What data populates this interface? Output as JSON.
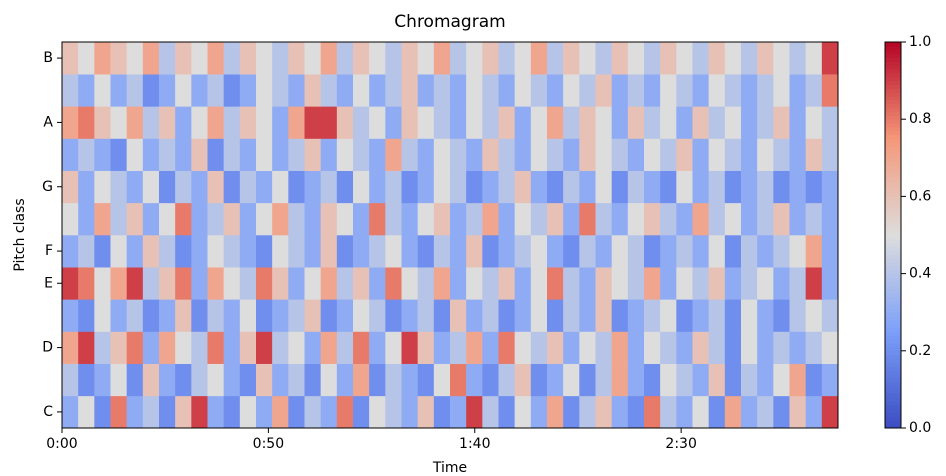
{
  "chart_data": {
    "type": "heatmap",
    "title": "Chromagram",
    "x_label": "Time",
    "y_label": "Pitch class",
    "cmap": "coolwarm",
    "xlim": [
      0,
      188
    ],
    "xticks": [
      {
        "value": 0,
        "label": "0:00"
      },
      {
        "value": 50,
        "label": "0:50"
      },
      {
        "value": 100,
        "label": "1:40"
      },
      {
        "value": 150,
        "label": "2:30"
      }
    ],
    "categories": [
      "C",
      null,
      "D",
      null,
      "E",
      "F",
      null,
      "G",
      null,
      "A",
      null,
      "B"
    ],
    "values": [
      [
        0.3,
        0.5,
        0.2,
        0.8,
        0.3,
        0.4,
        0.2,
        0.6,
        0.9,
        0.3,
        0.2,
        0.5,
        0.3,
        0.7,
        0.2,
        0.4,
        0.3,
        0.8,
        0.2,
        0.5,
        0.4,
        0.3,
        0.6,
        0.2,
        0.3,
        0.9,
        0.4,
        0.2,
        0.5,
        0.3,
        0.7,
        0.2,
        0.4,
        0.6,
        0.3,
        0.2,
        0.8,
        0.4,
        0.3,
        0.5,
        0.2,
        0.7,
        0.3,
        0.4,
        0.2,
        0.6,
        0.3,
        0.9
      ],
      [
        0.4,
        0.2,
        0.3,
        0.5,
        0.2,
        0.6,
        0.3,
        0.2,
        0.4,
        0.5,
        0.3,
        0.2,
        0.6,
        0.3,
        0.4,
        0.2,
        0.5,
        0.3,
        0.7,
        0.2,
        0.4,
        0.3,
        0.2,
        0.5,
        0.8,
        0.3,
        0.2,
        0.4,
        0.6,
        0.2,
        0.3,
        0.5,
        0.2,
        0.4,
        0.7,
        0.3,
        0.2,
        0.5,
        0.4,
        0.3,
        0.6,
        0.2,
        0.4,
        0.3,
        0.5,
        0.7,
        0.2,
        0.3
      ],
      [
        0.7,
        0.9,
        0.4,
        0.6,
        0.8,
        0.3,
        0.7,
        0.5,
        0.4,
        0.8,
        0.3,
        0.6,
        0.9,
        0.4,
        0.5,
        0.3,
        0.7,
        0.4,
        0.8,
        0.3,
        0.5,
        0.9,
        0.6,
        0.3,
        0.4,
        0.7,
        0.3,
        0.8,
        0.5,
        0.4,
        0.6,
        0.3,
        0.5,
        0.4,
        0.7,
        0.3,
        0.5,
        0.4,
        0.3,
        0.6,
        0.4,
        0.2,
        0.5,
        0.3,
        0.4,
        0.3,
        0.4,
        0.5
      ],
      [
        0.3,
        0.2,
        0.5,
        0.3,
        0.4,
        0.2,
        0.3,
        0.6,
        0.2,
        0.4,
        0.3,
        0.5,
        0.2,
        0.3,
        0.4,
        0.6,
        0.2,
        0.3,
        0.5,
        0.4,
        0.2,
        0.3,
        0.4,
        0.2,
        0.6,
        0.3,
        0.4,
        0.2,
        0.3,
        0.5,
        0.2,
        0.4,
        0.3,
        0.6,
        0.2,
        0.3,
        0.4,
        0.5,
        0.2,
        0.3,
        0.4,
        0.2,
        0.5,
        0.3,
        0.2,
        0.4,
        0.5,
        0.4
      ],
      [
        0.9,
        0.8,
        0.5,
        0.7,
        0.9,
        0.4,
        0.6,
        0.8,
        0.3,
        0.7,
        0.5,
        0.4,
        0.8,
        0.6,
        0.3,
        0.5,
        0.7,
        0.4,
        0.6,
        0.3,
        0.8,
        0.5,
        0.4,
        0.7,
        0.3,
        0.5,
        0.4,
        0.6,
        0.3,
        0.5,
        0.8,
        0.4,
        0.3,
        0.6,
        0.5,
        0.4,
        0.7,
        0.3,
        0.5,
        0.4,
        0.6,
        0.3,
        0.4,
        0.5,
        0.3,
        0.4,
        0.9,
        0.3
      ],
      [
        0.3,
        0.4,
        0.2,
        0.5,
        0.3,
        0.6,
        0.4,
        0.2,
        0.3,
        0.5,
        0.4,
        0.3,
        0.2,
        0.5,
        0.4,
        0.3,
        0.6,
        0.2,
        0.3,
        0.4,
        0.5,
        0.3,
        0.2,
        0.4,
        0.3,
        0.6,
        0.2,
        0.3,
        0.4,
        0.5,
        0.3,
        0.2,
        0.4,
        0.3,
        0.5,
        0.4,
        0.2,
        0.3,
        0.4,
        0.3,
        0.5,
        0.2,
        0.4,
        0.3,
        0.4,
        0.5,
        0.7,
        0.3
      ],
      [
        0.5,
        0.3,
        0.7,
        0.4,
        0.6,
        0.3,
        0.5,
        0.8,
        0.3,
        0.4,
        0.6,
        0.3,
        0.5,
        0.7,
        0.4,
        0.3,
        0.6,
        0.5,
        0.3,
        0.8,
        0.4,
        0.3,
        0.5,
        0.6,
        0.3,
        0.4,
        0.7,
        0.3,
        0.5,
        0.4,
        0.6,
        0.3,
        0.8,
        0.4,
        0.3,
        0.5,
        0.6,
        0.4,
        0.3,
        0.7,
        0.4,
        0.5,
        0.3,
        0.4,
        0.6,
        0.3,
        0.4,
        0.3
      ],
      [
        0.6,
        0.3,
        0.5,
        0.4,
        0.3,
        0.5,
        0.2,
        0.4,
        0.3,
        0.6,
        0.2,
        0.4,
        0.3,
        0.5,
        0.2,
        0.3,
        0.4,
        0.2,
        0.5,
        0.3,
        0.4,
        0.2,
        0.3,
        0.5,
        0.4,
        0.2,
        0.3,
        0.4,
        0.6,
        0.3,
        0.2,
        0.4,
        0.3,
        0.5,
        0.2,
        0.4,
        0.3,
        0.2,
        0.5,
        0.3,
        0.4,
        0.2,
        0.3,
        0.4,
        0.2,
        0.3,
        0.2,
        0.3
      ],
      [
        0.3,
        0.4,
        0.3,
        0.2,
        0.5,
        0.3,
        0.4,
        0.3,
        0.6,
        0.2,
        0.4,
        0.3,
        0.5,
        0.3,
        0.4,
        0.6,
        0.3,
        0.5,
        0.4,
        0.3,
        0.7,
        0.4,
        0.3,
        0.5,
        0.4,
        0.3,
        0.6,
        0.4,
        0.3,
        0.5,
        0.4,
        0.3,
        0.6,
        0.5,
        0.4,
        0.3,
        0.5,
        0.4,
        0.6,
        0.3,
        0.5,
        0.4,
        0.3,
        0.5,
        0.4,
        0.3,
        0.6,
        0.4
      ],
      [
        0.7,
        0.8,
        0.6,
        0.5,
        0.7,
        0.4,
        0.6,
        0.3,
        0.5,
        0.7,
        0.4,
        0.6,
        0.5,
        0.3,
        0.7,
        0.9,
        0.9,
        0.6,
        0.4,
        0.5,
        0.3,
        0.6,
        0.5,
        0.4,
        0.3,
        0.5,
        0.4,
        0.6,
        0.3,
        0.5,
        0.7,
        0.4,
        0.6,
        0.5,
        0.3,
        0.6,
        0.4,
        0.5,
        0.3,
        0.6,
        0.4,
        0.5,
        0.3,
        0.4,
        0.6,
        0.3,
        0.5,
        0.4
      ],
      [
        0.4,
        0.3,
        0.5,
        0.3,
        0.4,
        0.2,
        0.3,
        0.5,
        0.3,
        0.4,
        0.2,
        0.3,
        0.5,
        0.4,
        0.3,
        0.6,
        0.4,
        0.3,
        0.5,
        0.3,
        0.4,
        0.6,
        0.3,
        0.4,
        0.3,
        0.5,
        0.4,
        0.3,
        0.5,
        0.4,
        0.3,
        0.5,
        0.4,
        0.6,
        0.3,
        0.4,
        0.3,
        0.5,
        0.4,
        0.3,
        0.5,
        0.4,
        0.3,
        0.4,
        0.5,
        0.3,
        0.4,
        0.8
      ],
      [
        0.6,
        0.5,
        0.7,
        0.6,
        0.5,
        0.7,
        0.4,
        0.6,
        0.5,
        0.7,
        0.4,
        0.6,
        0.5,
        0.4,
        0.6,
        0.5,
        0.7,
        0.4,
        0.6,
        0.5,
        0.4,
        0.6,
        0.5,
        0.7,
        0.4,
        0.5,
        0.6,
        0.4,
        0.5,
        0.7,
        0.4,
        0.6,
        0.5,
        0.4,
        0.6,
        0.5,
        0.4,
        0.6,
        0.5,
        0.4,
        0.6,
        0.5,
        0.4,
        0.6,
        0.5,
        0.4,
        0.5,
        0.9
      ]
    ],
    "clim": [
      0,
      1
    ],
    "cticks": [
      {
        "value": 0,
        "label": "0.0"
      },
      0.2,
      0.4,
      0.6,
      0.8,
      {
        "value": 1,
        "label": "1.0"
      }
    ]
  }
}
